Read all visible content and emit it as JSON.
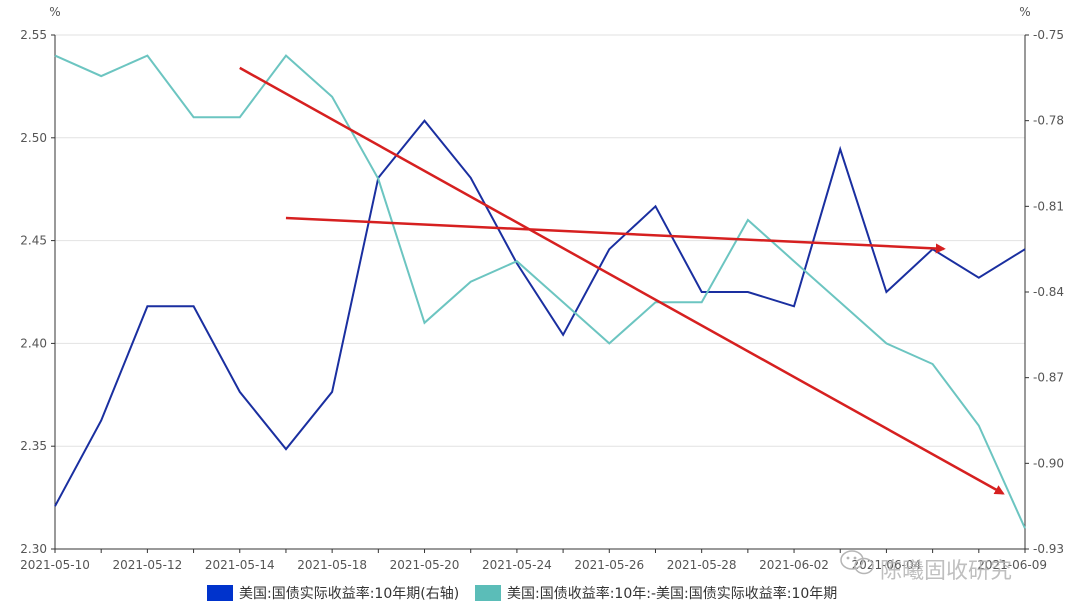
{
  "chart_data": {
    "type": "line",
    "x": [
      "2021-05-10",
      "2021-05-11",
      "2021-05-12",
      "2021-05-13",
      "2021-05-14",
      "2021-05-17",
      "2021-05-18",
      "2021-05-19",
      "2021-05-20",
      "2021-05-21",
      "2021-05-24",
      "2021-05-25",
      "2021-05-26",
      "2021-05-27",
      "2021-05-28",
      "2021-06-01",
      "2021-06-02",
      "2021-06-03",
      "2021-06-04",
      "2021-06-07",
      "2021-06-08",
      "2021-06-09"
    ],
    "x_tick_labels": [
      "2021-05-10",
      "2021-05-12",
      "2021-05-14",
      "2021-05-18",
      "2021-05-20",
      "2021-05-24",
      "2021-05-26",
      "2021-05-28",
      "2021-06-02",
      "2021-06-04",
      "2021-06-09"
    ],
    "y_left": {
      "unit": "%",
      "ylim": [
        2.3,
        2.55
      ],
      "ticks": [
        "2.55",
        "2.50",
        "2.45",
        "2.40",
        "2.35",
        "2.30"
      ]
    },
    "y_right": {
      "unit": "%",
      "ylim": [
        -0.93,
        -0.75
      ],
      "ticks": [
        "-0.75",
        "-0.78",
        "-0.81",
        "-0.84",
        "-0.87",
        "-0.90",
        "-0.93"
      ]
    },
    "grid": true,
    "legend_position": "bottom",
    "series": [
      {
        "name": "美国:国债实际收益率:10年期(右轴)",
        "axis": "right",
        "color": "#1a2fa0",
        "legend_color": "#0033cc",
        "values": [
          -0.915,
          -0.885,
          -0.845,
          -0.845,
          -0.875,
          -0.895,
          -0.875,
          -0.8,
          -0.78,
          -0.8,
          -0.83,
          -0.855,
          -0.825,
          -0.81,
          -0.84,
          -0.84,
          -0.845,
          -0.79,
          -0.84,
          -0.825,
          -0.835,
          -0.825
        ]
      },
      {
        "name": "美国:国债收益率:10年:-美国:国债实际收益率:10年期",
        "axis": "left",
        "color": "#6cc5c1",
        "legend_color": "#5bbdb8",
        "values": [
          2.54,
          2.53,
          2.54,
          2.51,
          2.51,
          2.54,
          2.52,
          2.48,
          2.41,
          2.43,
          2.44,
          2.42,
          2.4,
          2.42,
          2.42,
          2.46,
          2.44,
          2.42,
          2.4,
          2.39,
          2.36,
          2.31
        ]
      }
    ],
    "annotations": [
      {
        "type": "arrow",
        "color": "#d62020",
        "from": {
          "x": "2021-05-14",
          "y_left": 2.534
        },
        "to": {
          "x": "2021-06-09",
          "y_left": 2.327
        }
      },
      {
        "type": "arrow",
        "color": "#d62020",
        "from": {
          "x": "2021-05-17",
          "y_left": 2.461
        },
        "to": {
          "x": "2021-06-08",
          "y_left": 2.446
        }
      }
    ]
  },
  "watermark": {
    "text": "陈曦固收研究",
    "icon": "wechat-icon"
  }
}
